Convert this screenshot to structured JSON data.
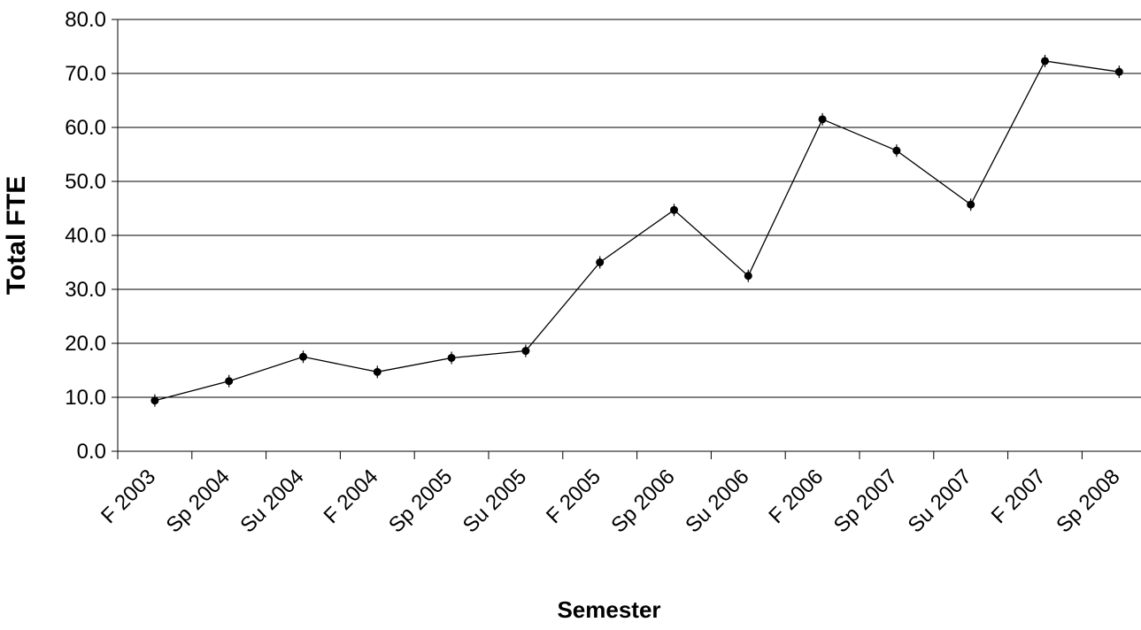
{
  "chart_data": {
    "type": "line",
    "xlabel": "Semester",
    "ylabel": "Total FTE",
    "categories": [
      "F 2003",
      "Sp 2004",
      "Su 2004",
      "F 2004",
      "Sp 2005",
      "Su 2005",
      "F 2005",
      "Sp 2006",
      "Su 2006",
      "F 2006",
      "Sp 2007",
      "Su 2007",
      "F 2007",
      "Sp 2008"
    ],
    "series": [
      {
        "values": [
          9.4,
          13.0,
          17.5,
          14.7,
          17.3,
          18.6,
          35.0,
          44.7,
          32.5,
          61.5,
          55.7,
          45.7,
          72.3,
          70.3
        ]
      }
    ],
    "ylim": [
      0,
      80
    ],
    "yticks": [
      "0.0",
      "10.0",
      "20.0",
      "30.0",
      "40.0",
      "50.0",
      "60.0",
      "70.0",
      "80.0"
    ],
    "grid": "horizontal",
    "line_color": "#000000",
    "marker_color": "#000000"
  }
}
